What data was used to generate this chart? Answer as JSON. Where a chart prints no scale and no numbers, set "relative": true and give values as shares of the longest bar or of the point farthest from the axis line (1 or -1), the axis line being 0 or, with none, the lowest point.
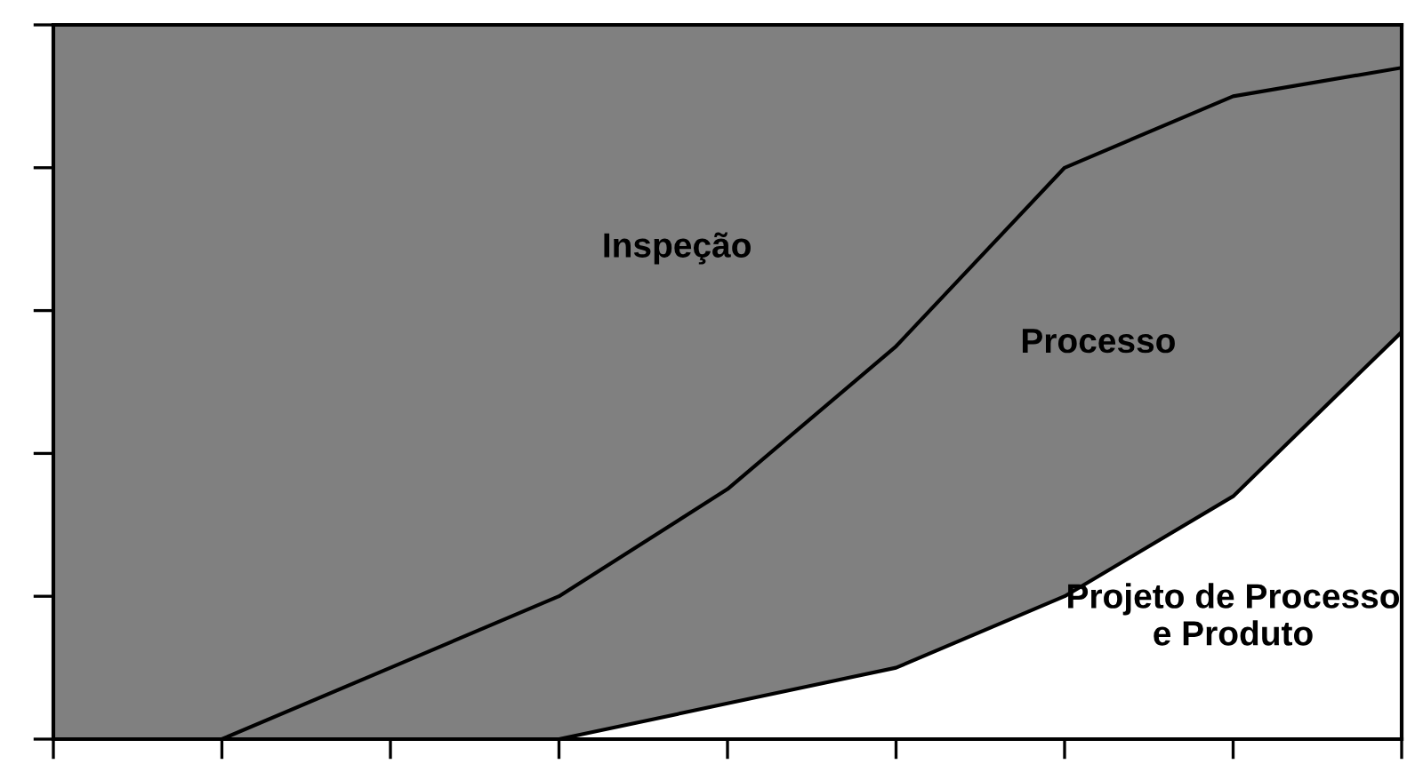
{
  "chart_data": {
    "type": "area",
    "stacked": true,
    "relative": true,
    "categories": [
      null,
      null,
      null,
      null,
      null,
      null,
      null,
      null,
      null
    ],
    "series": [
      {
        "name": "Projeto de Processo e Produto",
        "color": "#ffffff",
        "values": [
          0,
          0,
          0,
          0,
          0.05,
          0.1,
          0.2,
          0.34,
          0.57
        ]
      },
      {
        "name": "Processo",
        "color": "#808080",
        "values": [
          0,
          0,
          0.1,
          0.2,
          0.3,
          0.45,
          0.6,
          0.56,
          0.37
        ]
      },
      {
        "name": "Inspeção",
        "color": "#808080",
        "values": [
          1,
          1,
          0.9,
          0.8,
          0.65,
          0.45,
          0.2,
          0.1,
          0.06
        ]
      }
    ]
  }
}
